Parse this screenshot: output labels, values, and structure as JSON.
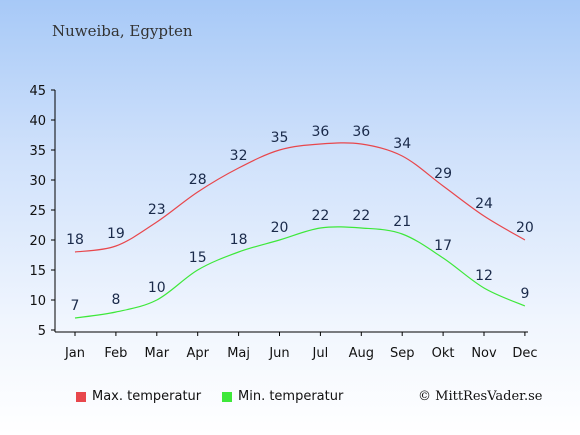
{
  "location": "Nuweiba, Egypten",
  "copyright": "© MittResVader.se",
  "colors": {
    "max": "#e8474c",
    "min": "#3ee83a"
  },
  "chart_data": {
    "type": "line",
    "categories": [
      "Jan",
      "Feb",
      "Mar",
      "Apr",
      "Maj",
      "Jun",
      "Jul",
      "Aug",
      "Sep",
      "Okt",
      "Nov",
      "Dec"
    ],
    "series": [
      {
        "name": "Max. temperatur",
        "values": [
          18,
          19,
          23,
          28,
          32,
          35,
          36,
          36,
          34,
          29,
          24,
          20
        ]
      },
      {
        "name": "Min. temperatur",
        "values": [
          7,
          8,
          10,
          15,
          18,
          20,
          22,
          22,
          21,
          17,
          12,
          9
        ]
      }
    ],
    "yticks": [
      5,
      10,
      15,
      20,
      25,
      30,
      35,
      40,
      45
    ],
    "ylim": [
      5,
      45
    ],
    "grid": false,
    "legend": "bottom"
  }
}
